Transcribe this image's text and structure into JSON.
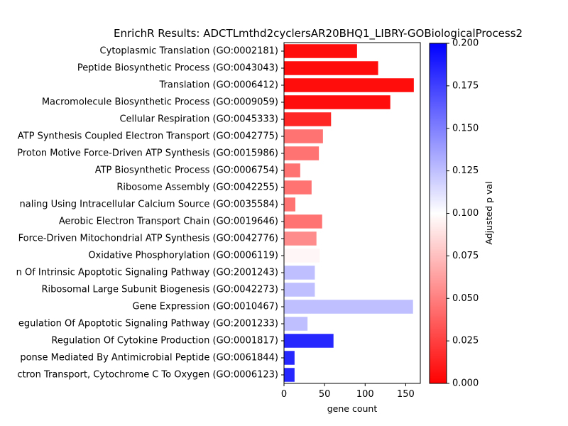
{
  "chart_data": {
    "type": "bar",
    "orientation": "horizontal",
    "title": "EnrichR Results: ADCTLmthd2cyclersAR20BHQ1_LIBRY-GOBiologicalProcess2",
    "xlabel": "gene count",
    "xlim": [
      0,
      168
    ],
    "xticks": [
      "0",
      "50",
      "100",
      "150"
    ],
    "categories": [
      "Cytoplasmic Translation (GO:0002181)",
      "Peptide Biosynthetic Process (GO:0043043)",
      "Translation (GO:0006412)",
      "Macromolecule Biosynthetic Process (GO:0009059)",
      "Cellular Respiration (GO:0045333)",
      "ATP Synthesis Coupled Electron Transport (GO:0042775)",
      "Proton Motive Force-Driven ATP Synthesis (GO:0015986)",
      "ATP Biosynthetic Process (GO:0006754)",
      "Ribosome Assembly (GO:0042255)",
      "naling Using Intracellular Calcium Source (GO:0035584)",
      "Aerobic Electron Transport Chain (GO:0019646)",
      "Force-Driven Mitochondrial ATP Synthesis (GO:0042776)",
      "Oxidative Phosphorylation (GO:0006119)",
      "n Of Intrinsic Apoptotic Signaling Pathway (GO:2001243)",
      "Ribosomal Large Subunit Biogenesis (GO:0042273)",
      "Gene Expression (GO:0010467)",
      "egulation Of Apoptotic Signaling Pathway (GO:2001233)",
      "Regulation Of Cytokine Production (GO:0001817)",
      "ponse Mediated By Antimicrobial Peptide (GO:0061844)",
      "ctron Transport, Cytochrome C To Oxygen (GO:0006123)"
    ],
    "values": [
      90,
      116,
      160,
      131,
      58,
      48,
      43,
      20,
      34,
      14,
      47,
      40,
      44,
      38,
      38,
      159,
      29,
      61,
      13,
      13
    ],
    "adjusted_p": [
      0.005,
      0.005,
      0.005,
      0.005,
      0.015,
      0.045,
      0.045,
      0.045,
      0.045,
      0.045,
      0.045,
      0.055,
      0.097,
      0.125,
      0.125,
      0.125,
      0.125,
      0.185,
      0.185,
      0.185
    ],
    "colorbar": {
      "label": "Adjusted p val",
      "range": [
        0,
        0.2
      ],
      "ticks": [
        "0.000",
        "0.025",
        "0.050",
        "0.075",
        "0.100",
        "0.125",
        "0.150",
        "0.175",
        "0.200"
      ],
      "colormap": [
        "#ff0000",
        "#ffffff",
        "#0000ff"
      ]
    },
    "grid": false
  }
}
